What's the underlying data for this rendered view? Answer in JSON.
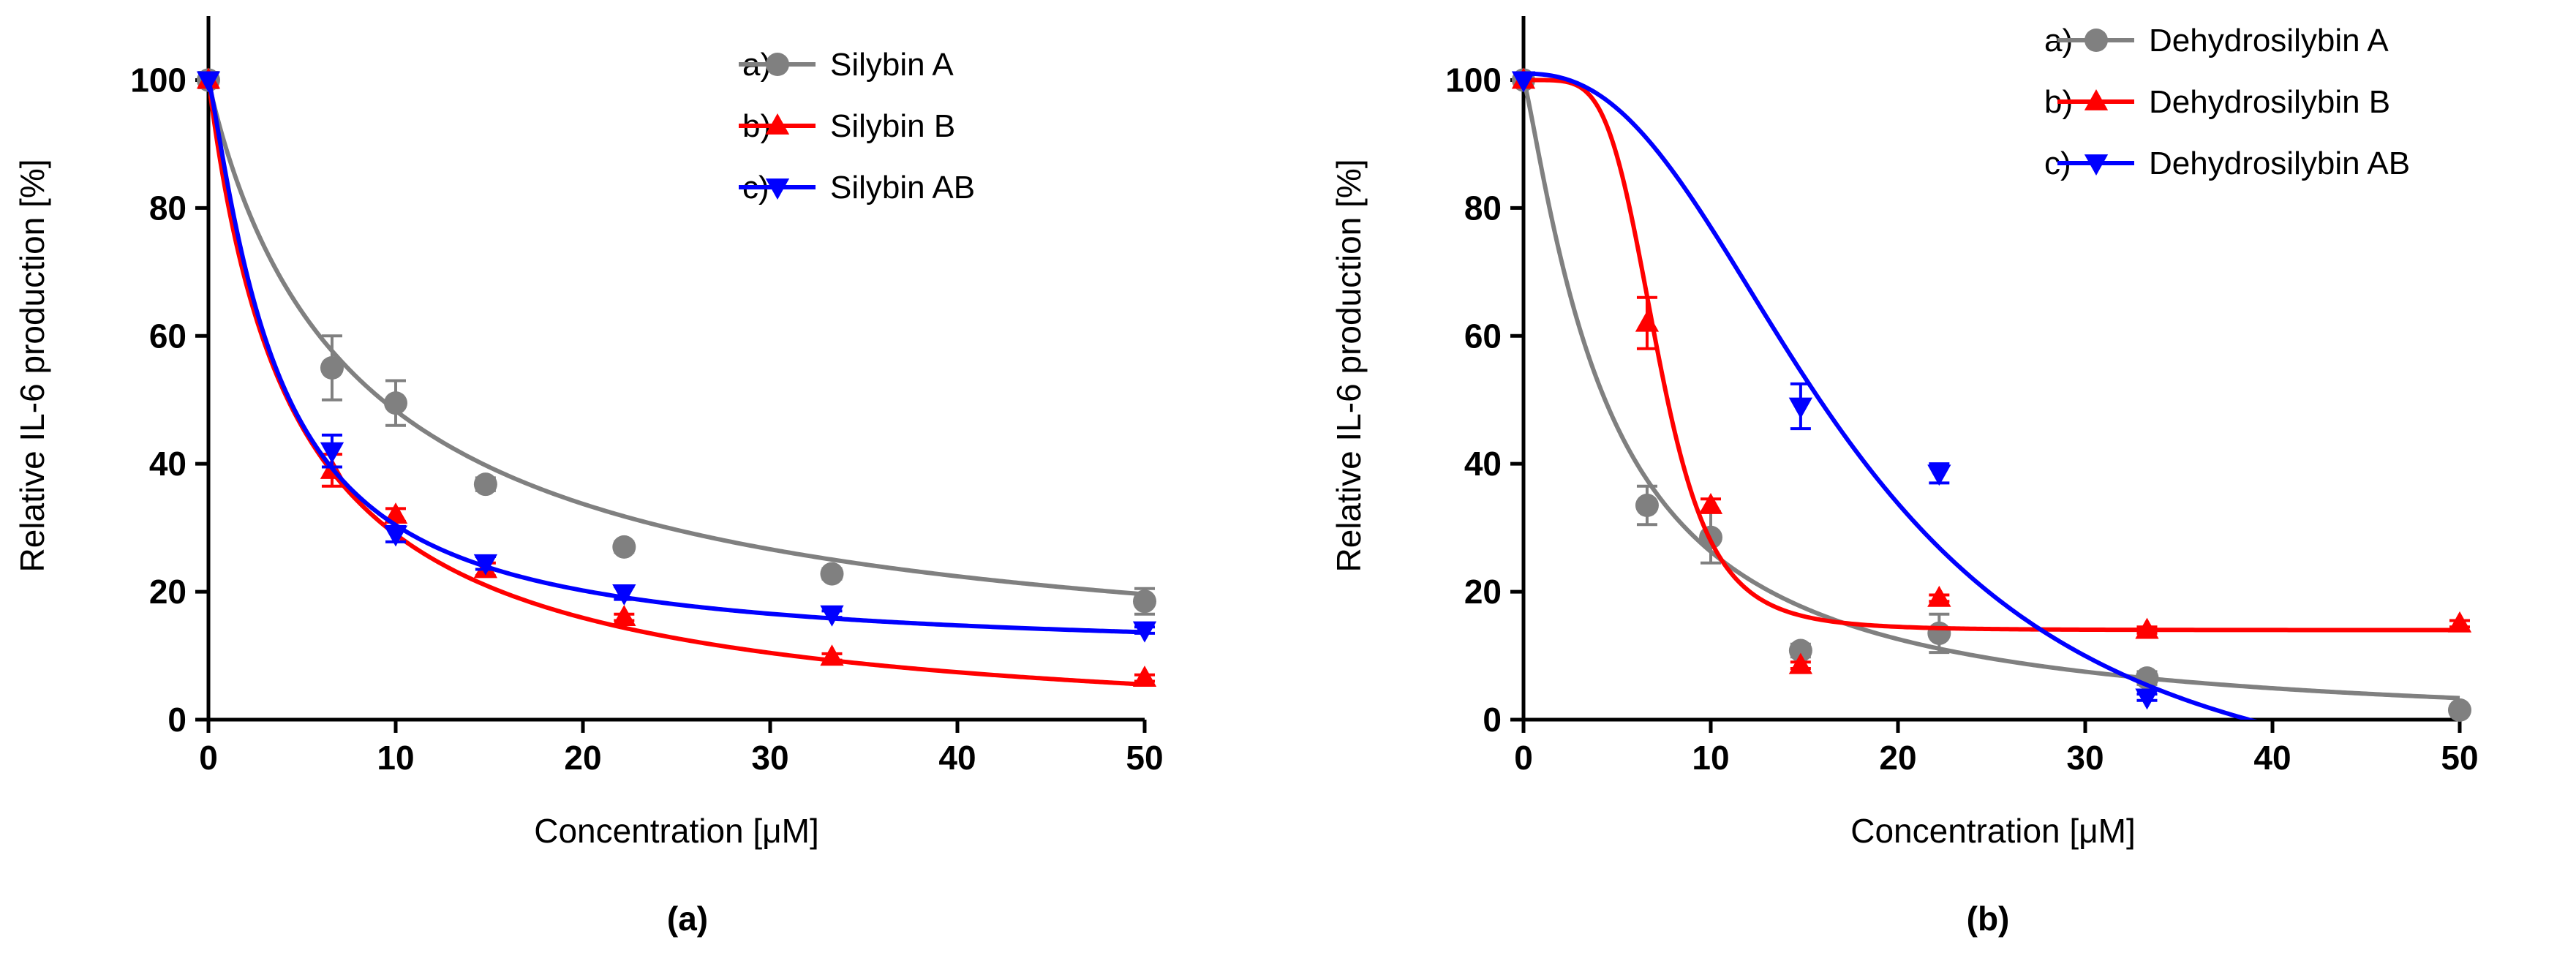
{
  "chart_data": [
    {
      "type": "scatter",
      "panel_label": "(a)",
      "xlabel": "Concentration [μM]",
      "ylabel": "Relative IL-6 production [%]",
      "xlim": [
        0,
        50
      ],
      "ylim": [
        0,
        110
      ],
      "xticks": [
        0,
        10,
        20,
        30,
        40,
        50
      ],
      "yticks": [
        0,
        20,
        40,
        60,
        80,
        100
      ],
      "legend_position": "top-right",
      "series": [
        {
          "legend_prefix": "a)",
          "name": "Silybin A",
          "color": "#808080",
          "marker": "circle",
          "x": [
            0,
            6.6,
            10,
            14.8,
            22.2,
            33.3,
            50
          ],
          "y": [
            100,
            55,
            49.5,
            36.8,
            27,
            22.8,
            18.5
          ],
          "err": [
            1.2,
            5,
            3.5,
            1,
            0.8,
            0.8,
            2
          ],
          "fit": {
            "model": "hill",
            "ic50": 8.3,
            "hill": 0.95,
            "bottom": 5,
            "top": 100
          }
        },
        {
          "legend_prefix": "b)",
          "name": "Silybin B",
          "color": "#ff0000",
          "marker": "triangle-up",
          "x": [
            0,
            6.6,
            10,
            14.8,
            22.2,
            33.3,
            50
          ],
          "y": [
            100,
            39,
            32,
            23.5,
            16,
            9.8,
            6.5
          ],
          "err": [
            0,
            2.5,
            1,
            1,
            0.5,
            0.5,
            0.5
          ],
          "fit": {
            "model": "hill",
            "ic50": 4.5,
            "hill": 1.0,
            "bottom": -3,
            "top": 100
          }
        },
        {
          "legend_prefix": "c)",
          "name": "Silybin AB",
          "color": "#0000ff",
          "marker": "triangle-down",
          "x": [
            0,
            6.6,
            10,
            14.8,
            22.2,
            33.3,
            50
          ],
          "y": [
            100,
            42,
            29,
            24.5,
            19.8,
            16.5,
            14
          ],
          "err": [
            0,
            2.5,
            1.2,
            1,
            1,
            0.5,
            0.5
          ],
          "fit": {
            "model": "hill",
            "ic50": 3.6,
            "hill": 1.2,
            "bottom": 10,
            "top": 100
          }
        }
      ]
    },
    {
      "type": "scatter",
      "panel_label": "(b)",
      "xlabel": "Concentration [μM]",
      "ylabel": "Relative IL-6 production [%]",
      "xlim": [
        0,
        50
      ],
      "ylim": [
        0,
        110
      ],
      "xticks": [
        0,
        10,
        20,
        30,
        40,
        50
      ],
      "yticks": [
        0,
        20,
        40,
        60,
        80,
        100
      ],
      "legend_position": "top-right",
      "series": [
        {
          "legend_prefix": "a)",
          "name": "Dehydrosilybin A",
          "color": "#808080",
          "marker": "circle",
          "x": [
            0,
            6.6,
            10,
            14.8,
            22.2,
            33.3,
            50
          ],
          "y": [
            100,
            33.5,
            28.5,
            10.8,
            13.5,
            6.5,
            1.5
          ],
          "err": [
            0,
            3,
            4,
            1,
            3,
            1,
            0.5
          ],
          "fit": {
            "model": "hill",
            "ic50": 4.5,
            "hill": 1.2,
            "bottom": -2,
            "top": 100
          }
        },
        {
          "legend_prefix": "b)",
          "name": "Dehydrosilybin B",
          "color": "#ff0000",
          "marker": "triangle-up",
          "x": [
            0,
            6.6,
            10,
            14.8,
            22.2,
            33.3,
            50
          ],
          "y": [
            100,
            62,
            33.5,
            8.5,
            19,
            14,
            15
          ],
          "err": [
            0,
            4,
            1,
            0.5,
            0.5,
            0.5,
            0.5
          ],
          "fit": {
            "model": "hill",
            "ic50": 7.2,
            "hill": 5,
            "bottom": 14,
            "top": 100
          }
        },
        {
          "legend_prefix": "c)",
          "name": "Dehydrosilybin AB",
          "color": "#0000ff",
          "marker": "triangle-down",
          "x": [
            0,
            14.8,
            22.2,
            33.3
          ],
          "y": [
            100,
            49,
            38.5,
            3.5
          ],
          "err": [
            0,
            3.5,
            1.5,
            0.5
          ],
          "fit": {
            "model": "hill",
            "ic50": 17.5,
            "hill": 2.4,
            "bottom": -15,
            "top": 101
          }
        }
      ]
    }
  ]
}
